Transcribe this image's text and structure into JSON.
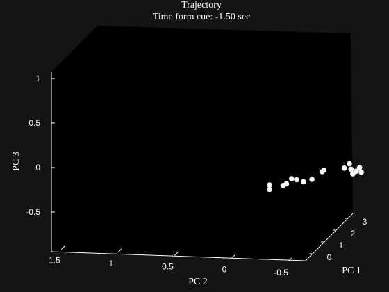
{
  "chart_data": {
    "type": "scatter",
    "title": "Trajectory",
    "subtitle": "Time form cue: -1.50 sec",
    "xlabel": "PC 1",
    "ylabel": "PC 2",
    "zlabel": "PC 3",
    "z_ticks": [
      "1",
      "0.5",
      "0",
      "-0.5"
    ],
    "y_ticks": [
      "1.5",
      "1",
      "0.5",
      "0",
      "-0.5"
    ],
    "x_ticks": [
      "0",
      "1",
      "2",
      "3"
    ],
    "colors": {
      "background": "#141414",
      "axes": "#000000",
      "marker": "#ffffff",
      "text": "#ffffff"
    },
    "points": [
      {
        "pc1": 0.05,
        "pc2": -0.22,
        "pc3": -0.24
      },
      {
        "pc1": 0.05,
        "pc2": -0.22,
        "pc3": -0.19
      },
      {
        "pc1": 0.05,
        "pc2": -0.3,
        "pc3": -0.19
      },
      {
        "pc1": 0.05,
        "pc2": -0.32,
        "pc3": -0.17
      },
      {
        "pc1": 0.05,
        "pc2": -0.35,
        "pc3": -0.11
      },
      {
        "pc1": 0.05,
        "pc2": -0.38,
        "pc3": -0.12
      },
      {
        "pc1": 0.05,
        "pc2": -0.42,
        "pc3": -0.14
      },
      {
        "pc1": 0.05,
        "pc2": -0.47,
        "pc3": -0.11
      },
      {
        "pc1": 0.05,
        "pc2": -0.53,
        "pc3": -0.02
      },
      {
        "pc1": 0.05,
        "pc2": -0.54,
        "pc3": 0.0
      },
      {
        "pc1": 0.05,
        "pc2": -0.66,
        "pc3": 0.03
      },
      {
        "pc1": 0.05,
        "pc2": -0.69,
        "pc3": 0.08
      },
      {
        "pc1": 0.05,
        "pc2": -0.7,
        "pc3": 0.02
      },
      {
        "pc1": 0.05,
        "pc2": -0.71,
        "pc3": -0.03
      },
      {
        "pc1": 0.05,
        "pc2": -0.73,
        "pc3": 0.0
      },
      {
        "pc1": 0.05,
        "pc2": -0.75,
        "pc3": 0.04
      },
      {
        "pc1": 0.05,
        "pc2": -0.76,
        "pc3": -0.01
      }
    ]
  }
}
